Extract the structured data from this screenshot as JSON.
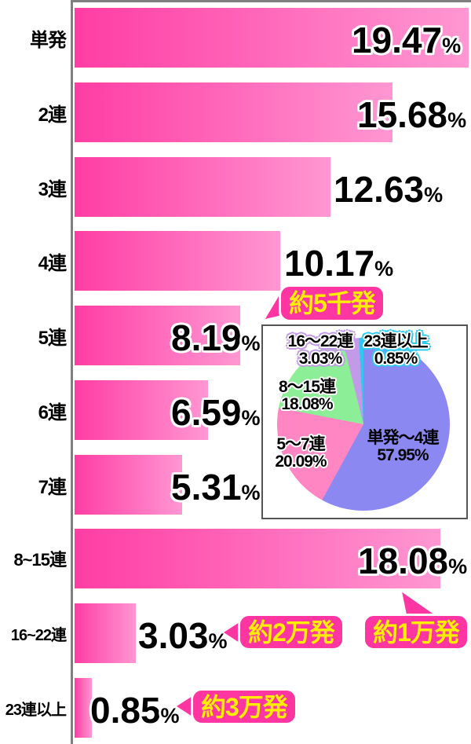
{
  "percent_symbol": "%",
  "colors": {
    "bar_gradient_start": "#ff3da4",
    "bar_gradient_end": "#ff97d2",
    "axis_gray": "#7f7f7f",
    "bubble_pink": "#ff35a2",
    "bubble_text_yellow": "#ffee00",
    "pie_purple": "#8b88f2",
    "pie_pink": "#ff85c3",
    "pie_green": "#8cee96",
    "pie_lavender": "#c29ae8",
    "pie_cyan": "#2fc8f0"
  },
  "bar_chart": {
    "rows": [
      {
        "label": "単発",
        "value": 19.47,
        "display": "19.47"
      },
      {
        "label": "2連",
        "value": 15.68,
        "display": "15.68"
      },
      {
        "label": "3連",
        "value": 12.63,
        "display": "12.63"
      },
      {
        "label": "4連",
        "value": 10.17,
        "display": "10.17"
      },
      {
        "label": "5連",
        "value": 8.19,
        "display": "8.19"
      },
      {
        "label": "6連",
        "value": 6.59,
        "display": "6.59"
      },
      {
        "label": "7連",
        "value": 5.31,
        "display": "5.31"
      },
      {
        "label": "8~15連",
        "value": 18.08,
        "display": "18.08"
      },
      {
        "label": "16~22連",
        "value": 3.03,
        "display": "3.03"
      },
      {
        "label": "23連以上",
        "value": 0.85,
        "display": "0.85"
      }
    ]
  },
  "pie_chart": {
    "slices": [
      {
        "label": "単発～4連",
        "display": "57.95%",
        "value": 57.95,
        "color": "#8b88f2"
      },
      {
        "label": "5～7連",
        "display": "20.09%",
        "value": 20.09,
        "color": "#ff85c3"
      },
      {
        "label": "8～15連",
        "display": "18.08%",
        "value": 18.08,
        "color": "#8cee96"
      },
      {
        "label": "16～22連",
        "display": "3.03%",
        "value": 3.03,
        "color": "#c29ae8"
      },
      {
        "label": "23連以上",
        "display": "0.85%",
        "value": 0.85,
        "color": "#2fc8f0"
      }
    ]
  },
  "callouts": [
    {
      "id": "about-5k",
      "text": "約5千発"
    },
    {
      "id": "about-10k",
      "text": "約1万発"
    },
    {
      "id": "about-20k",
      "text": "約2万発"
    },
    {
      "id": "about-30k",
      "text": "約3万発"
    }
  ],
  "chart_data": [
    {
      "type": "bar",
      "orientation": "horizontal",
      "categories": [
        "単発",
        "2連",
        "3連",
        "4連",
        "5連",
        "6連",
        "7連",
        "8~15連",
        "16~22連",
        "23連以上"
      ],
      "values": [
        19.47,
        15.68,
        12.63,
        10.17,
        8.19,
        6.59,
        5.31,
        18.08,
        3.03,
        0.85
      ],
      "value_labels": [
        "19.47%",
        "15.68%",
        "12.63%",
        "10.17%",
        "8.19%",
        "6.59%",
        "5.31%",
        "18.08%",
        "3.03%",
        "0.85%"
      ],
      "title": "",
      "xlabel": "",
      "ylabel": "",
      "xlim": [
        0,
        19.5
      ],
      "grid": false,
      "annotations": [
        {
          "text": "約5千発",
          "near": "4連/5連"
        },
        {
          "text": "約1万発",
          "near": "8~15連"
        },
        {
          "text": "約2万発",
          "near": "16~22連"
        },
        {
          "text": "約3万発",
          "near": "23連以上"
        }
      ]
    },
    {
      "type": "pie",
      "labels": [
        "単発～4連",
        "5～7連",
        "8～15連",
        "16～22連",
        "23連以上"
      ],
      "values": [
        57.95,
        20.09,
        18.08,
        3.03,
        0.85
      ],
      "start_angle_deg": 0,
      "direction": "clockwise",
      "legend_position": "labels-on-chart"
    }
  ]
}
